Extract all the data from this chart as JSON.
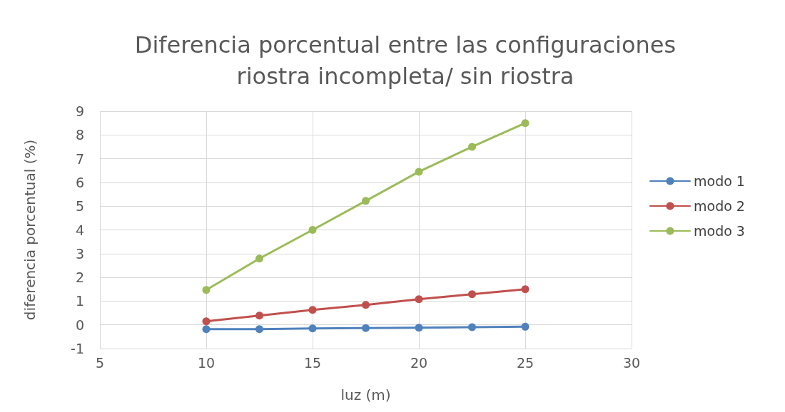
{
  "chart_data": {
    "type": "line",
    "title": "Diferencia porcentual entre las configuraciones\nriostra incompleta/ sin riostra",
    "xlabel": "luz (m)",
    "ylabel": "diferencia porcentual (%)",
    "x": [
      10,
      12.5,
      15,
      17.5,
      20,
      22.5,
      25
    ],
    "series": [
      {
        "name": "modo 1",
        "color": "#4f81bd",
        "values": [
          -0.18,
          -0.18,
          -0.15,
          -0.14,
          -0.12,
          -0.1,
          -0.08
        ]
      },
      {
        "name": "modo 2",
        "color": "#c0504d",
        "values": [
          0.15,
          0.39,
          0.63,
          0.84,
          1.08,
          1.29,
          1.5
        ]
      },
      {
        "name": "modo 3",
        "color": "#9bbb59",
        "values": [
          1.47,
          2.79,
          4.0,
          5.22,
          6.45,
          7.5,
          8.5
        ]
      }
    ],
    "xlim": [
      5,
      30
    ],
    "xticks": [
      5,
      10,
      15,
      20,
      25,
      30
    ],
    "ylim": [
      -1,
      9
    ],
    "yticks": [
      -1,
      0,
      1,
      2,
      3,
      4,
      5,
      6,
      7,
      8,
      9
    ],
    "grid": true,
    "legend": "right",
    "marker": "circle",
    "line_style": "solid"
  }
}
